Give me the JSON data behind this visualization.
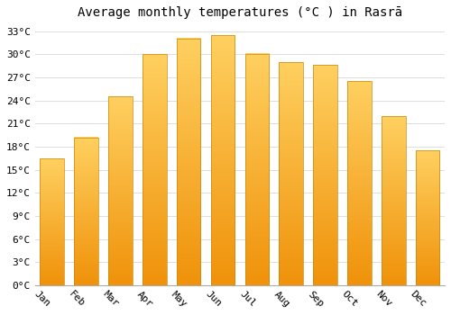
{
  "months": [
    "Jan",
    "Feb",
    "Mar",
    "Apr",
    "May",
    "Jun",
    "Jul",
    "Aug",
    "Sep",
    "Oct",
    "Nov",
    "Dec"
  ],
  "temperatures": [
    16.5,
    19.2,
    24.5,
    30.0,
    32.1,
    32.5,
    30.1,
    29.0,
    28.6,
    26.5,
    22.0,
    17.5
  ],
  "bar_color_top": "#FFD060",
  "bar_color_bottom": "#F0920A",
  "bar_edge_color": "#C8880A",
  "title": "Average monthly temperatures (°C ) in Rasrā",
  "ylim": [
    0,
    34
  ],
  "yticks": [
    0,
    3,
    6,
    9,
    12,
    15,
    18,
    21,
    24,
    27,
    30,
    33
  ],
  "ytick_labels": [
    "0°C",
    "3°C",
    "6°C",
    "9°C",
    "12°C",
    "15°C",
    "18°C",
    "21°C",
    "24°C",
    "27°C",
    "30°C",
    "33°C"
  ],
  "background_color": "#FFFFFF",
  "grid_color": "#DDDDDD",
  "title_fontsize": 10,
  "tick_fontsize": 8,
  "bar_width": 0.7,
  "xlabel_rotation": -45
}
